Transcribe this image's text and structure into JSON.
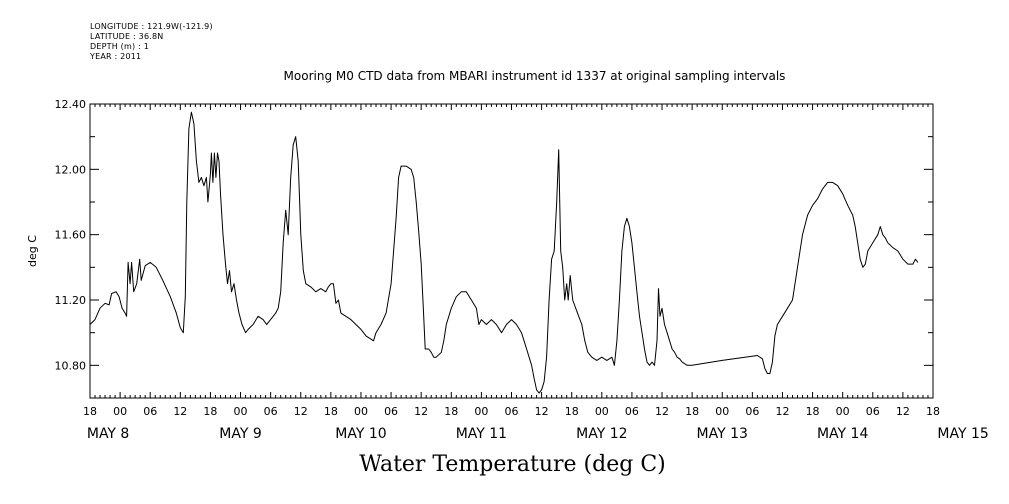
{
  "meta": {
    "longitude": "LONGITUDE : 121.9W(-121.9)",
    "latitude": "LATITUDE : 36.8N",
    "depth": "DEPTH (m) : 1",
    "year": "YEAR : 2011"
  },
  "chart_data": {
    "type": "line",
    "title": "Mooring M0 CTD data from MBARI instrument id 1337 at original sampling intervals",
    "xlabel": "Water Temperature (deg C)",
    "ylabel": "deg C",
    "x_unit": "hours since 2011-05-07 18:00",
    "xlim": [
      0,
      168
    ],
    "ylim": [
      10.6,
      12.4
    ],
    "y_ticks": [
      "10.80",
      "11.20",
      "11.60",
      "12.00",
      "12.40"
    ],
    "hour_ticks": [
      "18",
      "00",
      "06",
      "12",
      "18",
      "00",
      "06",
      "12",
      "18",
      "00",
      "06",
      "12",
      "18",
      "00",
      "06",
      "12",
      "18",
      "00",
      "06",
      "12",
      "18",
      "00",
      "06",
      "12",
      "18",
      "00",
      "06",
      "12",
      "18"
    ],
    "day_labels": [
      "MAY  8",
      "MAY  9",
      "MAY 10",
      "MAY 11",
      "MAY 12",
      "MAY 13",
      "MAY 14",
      "MAY 15"
    ],
    "grid": false,
    "series": [
      {
        "values": [
          [
            0,
            11.05
          ],
          [
            1,
            11.08
          ],
          [
            2,
            11.15
          ],
          [
            3,
            11.18
          ],
          [
            3.8,
            11.17
          ],
          [
            4.3,
            11.24
          ],
          [
            5.2,
            11.25
          ],
          [
            5.8,
            11.22
          ],
          [
            6.4,
            11.15
          ],
          [
            7,
            11.12
          ],
          [
            7.3,
            11.1
          ],
          [
            7.6,
            11.43
          ],
          [
            8,
            11.3
          ],
          [
            8.3,
            11.43
          ],
          [
            8.7,
            11.25
          ],
          [
            9.3,
            11.3
          ],
          [
            9.9,
            11.45
          ],
          [
            10.2,
            11.32
          ],
          [
            11,
            11.41
          ],
          [
            12,
            11.43
          ],
          [
            13.2,
            11.4
          ],
          [
            14.5,
            11.32
          ],
          [
            16,
            11.22
          ],
          [
            17.2,
            11.12
          ],
          [
            18,
            11.03
          ],
          [
            18.6,
            11.0
          ],
          [
            19,
            11.22
          ],
          [
            19.3,
            11.8
          ],
          [
            19.7,
            12.25
          ],
          [
            20.2,
            12.35
          ],
          [
            20.7,
            12.28
          ],
          [
            21.2,
            12.05
          ],
          [
            21.7,
            11.92
          ],
          [
            22.2,
            11.95
          ],
          [
            22.7,
            11.9
          ],
          [
            23.2,
            11.95
          ],
          [
            23.5,
            11.8
          ],
          [
            24,
            11.97
          ],
          [
            24.2,
            12.1
          ],
          [
            24.5,
            11.92
          ],
          [
            24.8,
            12.1
          ],
          [
            25.1,
            11.95
          ],
          [
            25.4,
            12.1
          ],
          [
            25.7,
            12.05
          ],
          [
            26,
            11.85
          ],
          [
            26.5,
            11.6
          ],
          [
            27,
            11.42
          ],
          [
            27.4,
            11.3
          ],
          [
            27.8,
            11.38
          ],
          [
            28.2,
            11.25
          ],
          [
            28.7,
            11.3
          ],
          [
            29.2,
            11.2
          ],
          [
            29.7,
            11.12
          ],
          [
            30.3,
            11.05
          ],
          [
            31,
            11.0
          ],
          [
            31.5,
            11.02
          ],
          [
            32.5,
            11.05
          ],
          [
            33.5,
            11.1
          ],
          [
            34.5,
            11.08
          ],
          [
            35.2,
            11.05
          ],
          [
            36,
            11.08
          ],
          [
            37,
            11.12
          ],
          [
            37.5,
            11.15
          ],
          [
            38,
            11.25
          ],
          [
            38.5,
            11.55
          ],
          [
            39,
            11.75
          ],
          [
            39.5,
            11.6
          ],
          [
            40,
            11.95
          ],
          [
            40.5,
            12.15
          ],
          [
            41,
            12.2
          ],
          [
            41.5,
            12.05
          ],
          [
            42,
            11.6
          ],
          [
            42.5,
            11.38
          ],
          [
            43,
            11.3
          ],
          [
            44,
            11.28
          ],
          [
            45,
            11.25
          ],
          [
            46,
            11.27
          ],
          [
            47,
            11.25
          ],
          [
            47.5,
            11.28
          ],
          [
            48,
            11.3
          ],
          [
            48.5,
            11.3
          ],
          [
            49,
            11.18
          ],
          [
            49.5,
            11.2
          ],
          [
            50,
            11.12
          ],
          [
            51,
            11.1
          ],
          [
            52,
            11.08
          ],
          [
            53,
            11.05
          ],
          [
            54,
            11.02
          ],
          [
            55,
            10.98
          ],
          [
            56,
            10.96
          ],
          [
            56.5,
            10.95
          ],
          [
            57,
            11.0
          ],
          [
            58,
            11.05
          ],
          [
            59,
            11.12
          ],
          [
            60,
            11.3
          ],
          [
            61,
            11.7
          ],
          [
            61.5,
            11.95
          ],
          [
            62,
            12.02
          ],
          [
            63,
            12.02
          ],
          [
            64,
            12.0
          ],
          [
            64.5,
            11.95
          ],
          [
            65,
            11.8
          ],
          [
            65.5,
            11.62
          ],
          [
            66,
            11.42
          ],
          [
            66.5,
            11.1
          ],
          [
            66.8,
            10.9
          ],
          [
            67.5,
            10.9
          ],
          [
            68,
            10.88
          ],
          [
            68.5,
            10.85
          ],
          [
            69,
            10.85
          ],
          [
            70,
            10.88
          ],
          [
            70.5,
            10.95
          ],
          [
            71,
            11.05
          ],
          [
            72,
            11.15
          ],
          [
            73,
            11.22
          ],
          [
            74,
            11.25
          ],
          [
            75,
            11.25
          ],
          [
            76,
            11.2
          ],
          [
            77,
            11.15
          ],
          [
            77.5,
            11.05
          ],
          [
            78,
            11.08
          ],
          [
            79,
            11.05
          ],
          [
            80,
            11.08
          ],
          [
            81,
            11.05
          ],
          [
            82,
            11.0
          ],
          [
            83,
            11.05
          ],
          [
            84,
            11.08
          ],
          [
            85,
            11.05
          ],
          [
            86,
            11.0
          ],
          [
            87,
            10.9
          ],
          [
            88,
            10.8
          ],
          [
            88.5,
            10.72
          ],
          [
            89,
            10.65
          ],
          [
            89.5,
            10.63
          ],
          [
            90,
            10.65
          ],
          [
            90.5,
            10.7
          ],
          [
            91,
            10.85
          ],
          [
            91.5,
            11.2
          ],
          [
            92,
            11.45
          ],
          [
            92.5,
            11.5
          ],
          [
            93,
            11.8
          ],
          [
            93.4,
            12.12
          ],
          [
            93.8,
            11.5
          ],
          [
            94.2,
            11.4
          ],
          [
            94.6,
            11.2
          ],
          [
            95,
            11.3
          ],
          [
            95.3,
            11.2
          ],
          [
            95.7,
            11.35
          ],
          [
            96.2,
            11.2
          ],
          [
            96.8,
            11.15
          ],
          [
            97.4,
            11.1
          ],
          [
            98,
            11.05
          ],
          [
            98.6,
            10.95
          ],
          [
            99.2,
            10.88
          ],
          [
            100,
            10.85
          ],
          [
            101,
            10.83
          ],
          [
            102,
            10.85
          ],
          [
            103,
            10.83
          ],
          [
            104,
            10.85
          ],
          [
            104.5,
            10.8
          ],
          [
            105,
            10.95
          ],
          [
            105.5,
            11.2
          ],
          [
            106,
            11.5
          ],
          [
            106.5,
            11.65
          ],
          [
            107,
            11.7
          ],
          [
            107.5,
            11.65
          ],
          [
            108,
            11.55
          ],
          [
            108.5,
            11.4
          ],
          [
            109,
            11.25
          ],
          [
            109.5,
            11.1
          ],
          [
            110,
            11.0
          ],
          [
            110.5,
            10.9
          ],
          [
            111,
            10.82
          ],
          [
            111.5,
            10.8
          ],
          [
            112,
            10.82
          ],
          [
            112.5,
            10.8
          ],
          [
            113,
            10.95
          ],
          [
            113.3,
            11.27
          ],
          [
            113.6,
            11.1
          ],
          [
            114,
            11.15
          ],
          [
            114.5,
            11.05
          ],
          [
            115,
            11.0
          ],
          [
            115.5,
            10.95
          ],
          [
            116,
            10.9
          ],
          [
            116.5,
            10.88
          ],
          [
            117,
            10.85
          ],
          [
            117.5,
            10.84
          ],
          [
            118,
            10.82
          ],
          [
            119,
            10.8
          ],
          [
            120,
            10.8
          ],
          [
            126,
            10.83
          ],
          [
            133,
            10.86
          ],
          [
            134,
            10.84
          ],
          [
            134.5,
            10.78
          ],
          [
            135,
            10.75
          ],
          [
            135.5,
            10.75
          ],
          [
            136,
            10.82
          ],
          [
            136.5,
            10.98
          ],
          [
            137,
            11.05
          ],
          [
            138,
            11.1
          ],
          [
            139,
            11.15
          ],
          [
            140,
            11.2
          ],
          [
            141,
            11.4
          ],
          [
            142,
            11.6
          ],
          [
            143,
            11.72
          ],
          [
            144,
            11.78
          ],
          [
            145,
            11.82
          ],
          [
            146,
            11.88
          ],
          [
            147,
            11.92
          ],
          [
            148,
            11.92
          ],
          [
            149,
            11.9
          ],
          [
            150,
            11.85
          ],
          [
            151,
            11.78
          ],
          [
            152,
            11.72
          ],
          [
            152.5,
            11.65
          ],
          [
            153,
            11.55
          ],
          [
            153.5,
            11.45
          ],
          [
            154,
            11.4
          ],
          [
            154.5,
            11.42
          ],
          [
            155,
            11.5
          ],
          [
            156,
            11.55
          ],
          [
            157,
            11.6
          ],
          [
            157.5,
            11.65
          ],
          [
            158,
            11.6
          ],
          [
            158.5,
            11.58
          ],
          [
            159,
            11.55
          ],
          [
            160,
            11.52
          ],
          [
            161,
            11.5
          ],
          [
            162,
            11.45
          ],
          [
            163,
            11.42
          ],
          [
            164,
            11.42
          ],
          [
            164.5,
            11.45
          ],
          [
            165,
            11.43
          ]
        ]
      }
    ]
  }
}
